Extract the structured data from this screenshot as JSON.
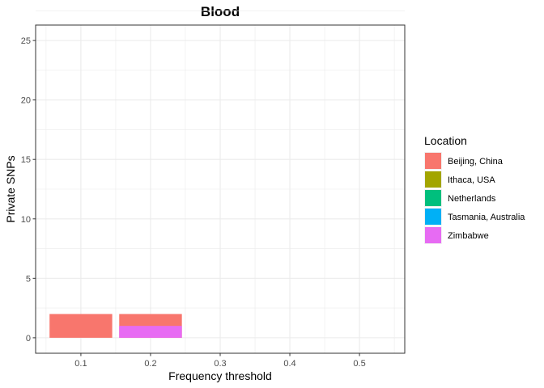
{
  "chart_data": {
    "type": "bar",
    "stacked": false,
    "title": "Blood",
    "xlabel": "Frequency threshold",
    "ylabel": "Private SNPs",
    "xlim": [
      0.035,
      0.565
    ],
    "ylim": [
      -1.3,
      26.3
    ],
    "xticks": [
      "0.1",
      "0.2",
      "0.3",
      "0.4",
      "0.5"
    ],
    "xtick_values": [
      0.1,
      0.2,
      0.3,
      0.4,
      0.5
    ],
    "yticks": [
      "0",
      "5",
      "10",
      "15",
      "20",
      "25"
    ],
    "ytick_values": [
      0,
      5,
      10,
      15,
      20,
      25
    ],
    "grid": true,
    "bar_width": 0.09,
    "legend": {
      "title": "Location",
      "position": "right"
    },
    "series": [
      {
        "name": "Beijing, China",
        "color": "#F8766D",
        "points": [
          {
            "x": 0.1,
            "y": 2
          },
          {
            "x": 0.2,
            "y": 2
          }
        ]
      },
      {
        "name": "Ithaca, USA",
        "color": "#A3A500",
        "points": []
      },
      {
        "name": "Netherlands",
        "color": "#00BF7D",
        "points": []
      },
      {
        "name": "Tasmania, Australia",
        "color": "#00B0F6",
        "points": []
      },
      {
        "name": "Zimbabwe",
        "color": "#E76BF3",
        "points": [
          {
            "x": 0.2,
            "y": 1
          }
        ]
      }
    ]
  }
}
